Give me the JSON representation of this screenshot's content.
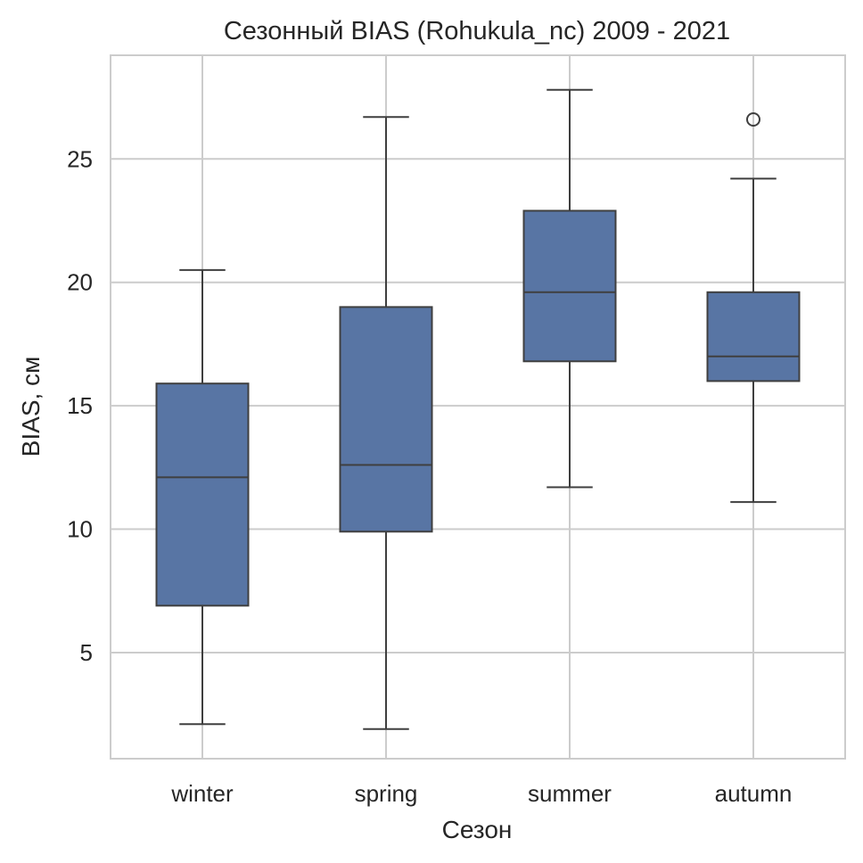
{
  "chart_data": {
    "type": "box",
    "title": "Сезонный BIAS (Rohukula_nc) 2009 - 2021",
    "xlabel": "Сезон",
    "ylabel": "BIAS, см",
    "categories": [
      "winter",
      "spring",
      "summer",
      "autumn"
    ],
    "ylim": [
      0.7,
      29.2
    ],
    "yticks": [
      5,
      10,
      15,
      20,
      25
    ],
    "grid": true,
    "legend": "none",
    "colors": {
      "box_fill": "#5875a4",
      "box_edge": "#3f3f3f",
      "grid": "#cccccc",
      "frame": "#cccccc"
    },
    "boxes": [
      {
        "category": "winter",
        "whisker_low": 2.1,
        "q1": 6.9,
        "median": 12.1,
        "q3": 15.9,
        "whisker_high": 20.5,
        "outliers": []
      },
      {
        "category": "spring",
        "whisker_low": 1.9,
        "q1": 9.9,
        "median": 12.6,
        "q3": 19.0,
        "whisker_high": 26.7,
        "outliers": []
      },
      {
        "category": "summer",
        "whisker_low": 11.7,
        "q1": 16.8,
        "median": 19.6,
        "q3": 22.9,
        "whisker_high": 27.8,
        "outliers": []
      },
      {
        "category": "autumn",
        "whisker_low": 11.1,
        "q1": 16.0,
        "median": 17.0,
        "q3": 19.6,
        "whisker_high": 24.2,
        "outliers": [
          26.6
        ]
      }
    ]
  }
}
